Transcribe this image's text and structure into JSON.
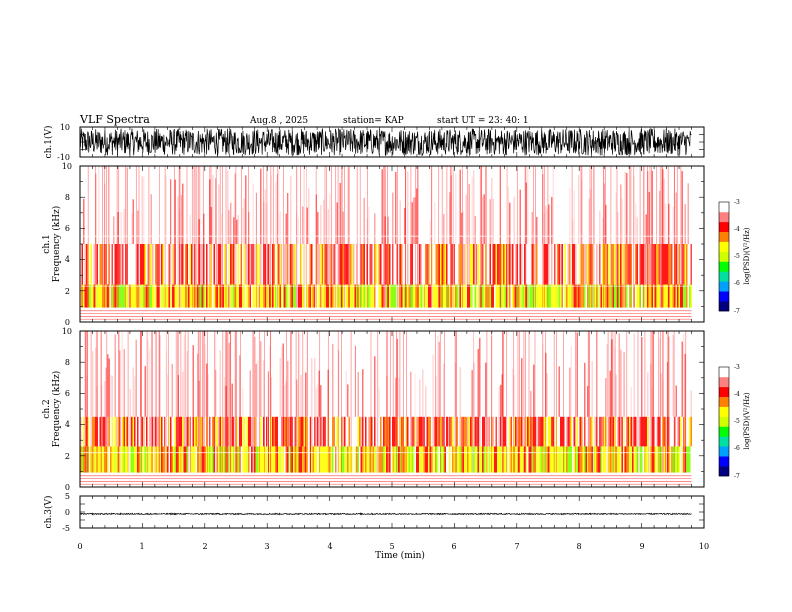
{
  "header": {
    "title": "VLF Spectra",
    "date": "Aug.8 , 2025",
    "station": "station= KAP",
    "start_ut": "start UT = 23: 40: 1"
  },
  "chart_data": {
    "type": "heatmap",
    "title": "VLF Spectra",
    "xlabel": "Time (min)",
    "xlim": [
      0,
      10
    ],
    "x_ticks": [
      "0",
      "1",
      "2",
      "3",
      "4",
      "5",
      "6",
      "7",
      "8",
      "9",
      "10"
    ],
    "data_end_min": 9.8,
    "panels": [
      {
        "id": "ch1-waveform",
        "kind": "waveform",
        "ylabel": "ch.1(V)",
        "ylim": [
          -10,
          10
        ],
        "y_ticks": [
          "10",
          "-10"
        ],
        "amplitude_range": [
          -9,
          9
        ]
      },
      {
        "id": "ch1-spectrogram",
        "kind": "spectrogram",
        "ylabel_line1": "ch.1",
        "ylabel_line2": "Frequency (kHz)",
        "ylim": [
          0,
          10
        ],
        "y_ticks": [
          "0",
          "2",
          "4",
          "6",
          "8",
          "10"
        ],
        "bands": [
          {
            "from_khz": 0.9,
            "to_khz": 2.4,
            "level": "yellow-green"
          },
          {
            "from_khz": 2.4,
            "to_khz": 5.0,
            "level": "red"
          },
          {
            "from_khz": 5.0,
            "to_khz": 10.0,
            "level": "sparse red"
          }
        ],
        "horizontal_lines_khz": [
          5.5,
          2.3,
          0.9
        ]
      },
      {
        "id": "ch2-spectrogram",
        "kind": "spectrogram",
        "ylabel_line1": "ch.2",
        "ylabel_line2": "Frequency (kHz)",
        "ylim": [
          0,
          10
        ],
        "y_ticks": [
          "0",
          "2",
          "4",
          "6",
          "8",
          "10"
        ],
        "bands": [
          {
            "from_khz": 0.9,
            "to_khz": 2.6,
            "level": "yellow-green"
          },
          {
            "from_khz": 2.6,
            "to_khz": 4.5,
            "level": "red"
          },
          {
            "from_khz": 4.5,
            "to_khz": 10.0,
            "level": "sparse red"
          }
        ],
        "horizontal_lines_khz": [
          2.2,
          0.9
        ]
      },
      {
        "id": "ch3-waveform",
        "kind": "waveform",
        "ylabel": "ch.3(V)",
        "ylim": [
          -5,
          5
        ],
        "y_ticks": [
          "5",
          "0",
          "-5"
        ],
        "amplitude_range": [
          -0.8,
          -0.4
        ]
      }
    ],
    "colorbar": {
      "label": "log(PSD)(V²/Hz)",
      "ticks": [
        "-3",
        "-4",
        "-5",
        "-6",
        "-7"
      ],
      "range": [
        -7,
        -3
      ],
      "colors": [
        "#000080",
        "#0000ff",
        "#00a0ff",
        "#00e0a0",
        "#00ff00",
        "#d0ff00",
        "#ffff00",
        "#ff8000",
        "#ff0000",
        "#ff8080",
        "#ffffff"
      ]
    }
  }
}
